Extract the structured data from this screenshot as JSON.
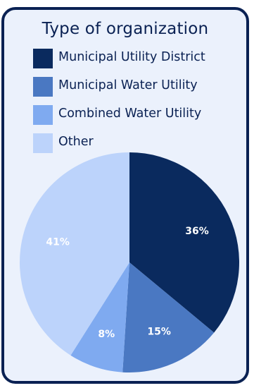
{
  "chart_data": {
    "type": "pie",
    "title": "Type of organization",
    "legend_position": "top",
    "categories": [
      "Municipal Utility District",
      "Municipal Water Utility",
      "Combined Water Utility",
      "Other"
    ],
    "values": [
      36,
      15,
      8,
      41
    ],
    "labels": [
      "36%",
      "15%",
      "8%",
      "41%"
    ],
    "colors": [
      "#0a2a5e",
      "#4a78c2",
      "#7faaf0",
      "#bcd3fb"
    ],
    "label_colors": [
      "#ffffff",
      "#ffffff",
      "#ffffff",
      "#ffffff"
    ]
  }
}
